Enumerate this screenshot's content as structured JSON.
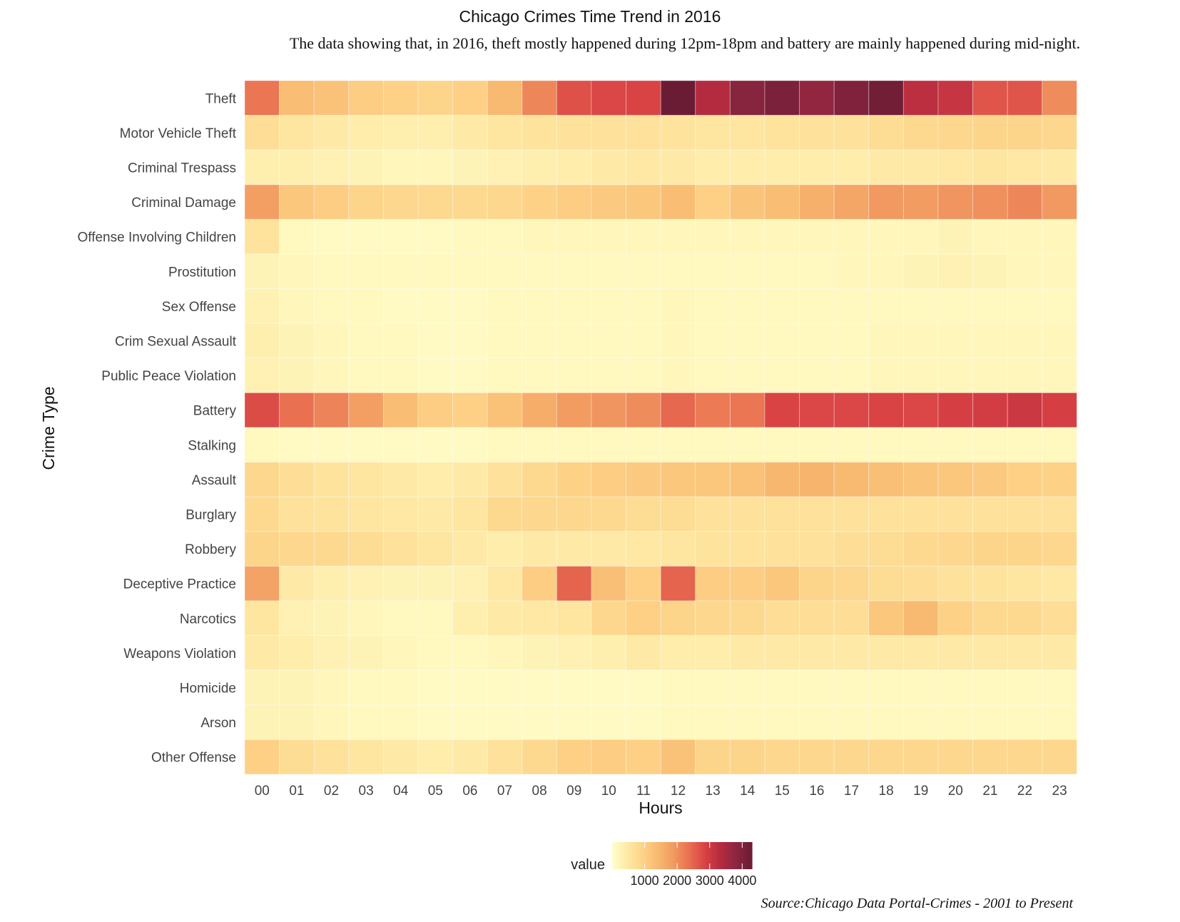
{
  "chart_data": {
    "type": "heatmap",
    "title": "Chicago Crimes Time Trend in 2016",
    "subtitle": "The data showing that, in 2016, theft mostly happened during 12pm-18pm and battery are mainly happened during mid-night.",
    "xlabel": "Hours",
    "ylabel": "Crime Type",
    "caption": "Source:Chicago Data Portal-Crimes - 2001 to Present",
    "x": [
      "00",
      "01",
      "02",
      "03",
      "04",
      "05",
      "06",
      "07",
      "08",
      "09",
      "10",
      "11",
      "12",
      "13",
      "14",
      "15",
      "16",
      "17",
      "18",
      "19",
      "20",
      "21",
      "22",
      "23"
    ],
    "y": [
      "Theft",
      "Motor Vehicle Theft",
      "Criminal Trespass",
      "Criminal Damage",
      "Offense Involving Children",
      "Prostitution",
      "Sex Offense",
      "Crim Sexual Assault",
      "Public Peace Violation",
      "Battery",
      "Stalking",
      "Assault",
      "Burglary",
      "Robbery",
      "Deceptive Practice",
      "Narcotics",
      "Weapons Violation",
      "Homicide",
      "Arson",
      "Other Offense"
    ],
    "values": [
      [
        2300,
        1350,
        1250,
        1050,
        950,
        900,
        1000,
        1400,
        2100,
        2700,
        2800,
        2850,
        4300,
        3350,
        3900,
        4050,
        3750,
        4000,
        4200,
        3250,
        3100,
        2650,
        2650,
        2050
      ],
      [
        700,
        550,
        450,
        400,
        350,
        350,
        450,
        550,
        600,
        650,
        650,
        650,
        600,
        550,
        550,
        600,
        650,
        650,
        750,
        800,
        850,
        900,
        900,
        850
      ],
      [
        350,
        350,
        300,
        250,
        200,
        200,
        250,
        300,
        350,
        400,
        450,
        500,
        450,
        400,
        400,
        400,
        400,
        400,
        450,
        450,
        500,
        550,
        500,
        450
      ],
      [
        1800,
        1150,
        1050,
        900,
        850,
        800,
        800,
        850,
        950,
        1050,
        1100,
        1150,
        1350,
        1000,
        1200,
        1350,
        1550,
        1700,
        1900,
        1850,
        1950,
        2000,
        2100,
        1900
      ],
      [
        600,
        150,
        100,
        100,
        100,
        100,
        150,
        150,
        200,
        200,
        200,
        200,
        200,
        200,
        200,
        200,
        200,
        200,
        200,
        200,
        250,
        200,
        200,
        200
      ],
      [
        250,
        200,
        150,
        150,
        150,
        150,
        150,
        150,
        150,
        150,
        150,
        150,
        150,
        150,
        150,
        150,
        150,
        200,
        200,
        250,
        300,
        250,
        200,
        200
      ],
      [
        300,
        200,
        150,
        150,
        100,
        100,
        100,
        150,
        150,
        150,
        150,
        150,
        200,
        150,
        150,
        150,
        150,
        150,
        150,
        150,
        150,
        150,
        150,
        150
      ],
      [
        350,
        250,
        200,
        150,
        150,
        100,
        100,
        150,
        150,
        150,
        150,
        150,
        200,
        150,
        150,
        150,
        150,
        150,
        200,
        200,
        200,
        200,
        200,
        200
      ],
      [
        300,
        250,
        200,
        150,
        150,
        100,
        100,
        150,
        150,
        150,
        150,
        150,
        200,
        150,
        150,
        150,
        150,
        150,
        200,
        200,
        200,
        200,
        200,
        200
      ],
      [
        2750,
        2350,
        2150,
        1800,
        1350,
        1050,
        1000,
        1250,
        1600,
        1850,
        1950,
        2050,
        2450,
        2250,
        2300,
        2850,
        2800,
        2800,
        2850,
        2800,
        2900,
        2950,
        3050,
        2900
      ],
      [
        150,
        100,
        100,
        100,
        100,
        100,
        100,
        150,
        150,
        150,
        150,
        150,
        150,
        150,
        150,
        150,
        150,
        150,
        150,
        150,
        150,
        150,
        150,
        150
      ],
      [
        850,
        700,
        600,
        550,
        450,
        400,
        450,
        650,
        800,
        950,
        1050,
        1100,
        1150,
        1150,
        1250,
        1450,
        1500,
        1400,
        1300,
        1200,
        1150,
        1100,
        1000,
        950
      ],
      [
        800,
        650,
        600,
        550,
        500,
        450,
        550,
        800,
        850,
        850,
        800,
        750,
        750,
        650,
        650,
        650,
        650,
        650,
        650,
        650,
        650,
        650,
        650,
        650
      ],
      [
        900,
        850,
        800,
        750,
        650,
        550,
        450,
        400,
        450,
        450,
        450,
        500,
        550,
        600,
        600,
        650,
        650,
        700,
        750,
        800,
        850,
        900,
        900,
        850
      ],
      [
        1750,
        450,
        350,
        300,
        250,
        250,
        300,
        500,
        1050,
        2500,
        1300,
        1000,
        2500,
        1050,
        1050,
        1150,
        900,
        850,
        750,
        700,
        650,
        600,
        550,
        500
      ],
      [
        550,
        300,
        250,
        200,
        150,
        150,
        350,
        450,
        500,
        550,
        850,
        1000,
        900,
        850,
        800,
        700,
        700,
        700,
        1150,
        1400,
        950,
        800,
        800,
        700
      ],
      [
        450,
        400,
        300,
        250,
        200,
        150,
        150,
        200,
        250,
        300,
        350,
        450,
        400,
        400,
        450,
        450,
        450,
        450,
        450,
        450,
        450,
        450,
        450,
        450
      ],
      [
        250,
        250,
        200,
        150,
        150,
        100,
        100,
        100,
        100,
        100,
        100,
        100,
        150,
        150,
        150,
        150,
        150,
        150,
        150,
        150,
        150,
        150,
        150,
        150
      ],
      [
        250,
        250,
        200,
        150,
        150,
        100,
        100,
        100,
        100,
        100,
        100,
        100,
        150,
        150,
        150,
        150,
        150,
        150,
        150,
        150,
        150,
        150,
        150,
        150
      ],
      [
        1000,
        750,
        650,
        550,
        450,
        400,
        450,
        650,
        800,
        1000,
        1050,
        1000,
        1250,
        900,
        900,
        850,
        850,
        850,
        850,
        850,
        850,
        850,
        850,
        850
      ]
    ],
    "legend": {
      "title": "value",
      "ticks": [
        1000,
        2000,
        3000,
        4000
      ],
      "range": [
        0,
        4300
      ],
      "placement": "bottom",
      "colors": [
        "#ffffcc",
        "#fee9a4",
        "#fdd287",
        "#f8b86f",
        "#f19860",
        "#e86e50",
        "#d84144",
        "#b42b3f",
        "#8c2540",
        "#6b1c35"
      ]
    }
  }
}
